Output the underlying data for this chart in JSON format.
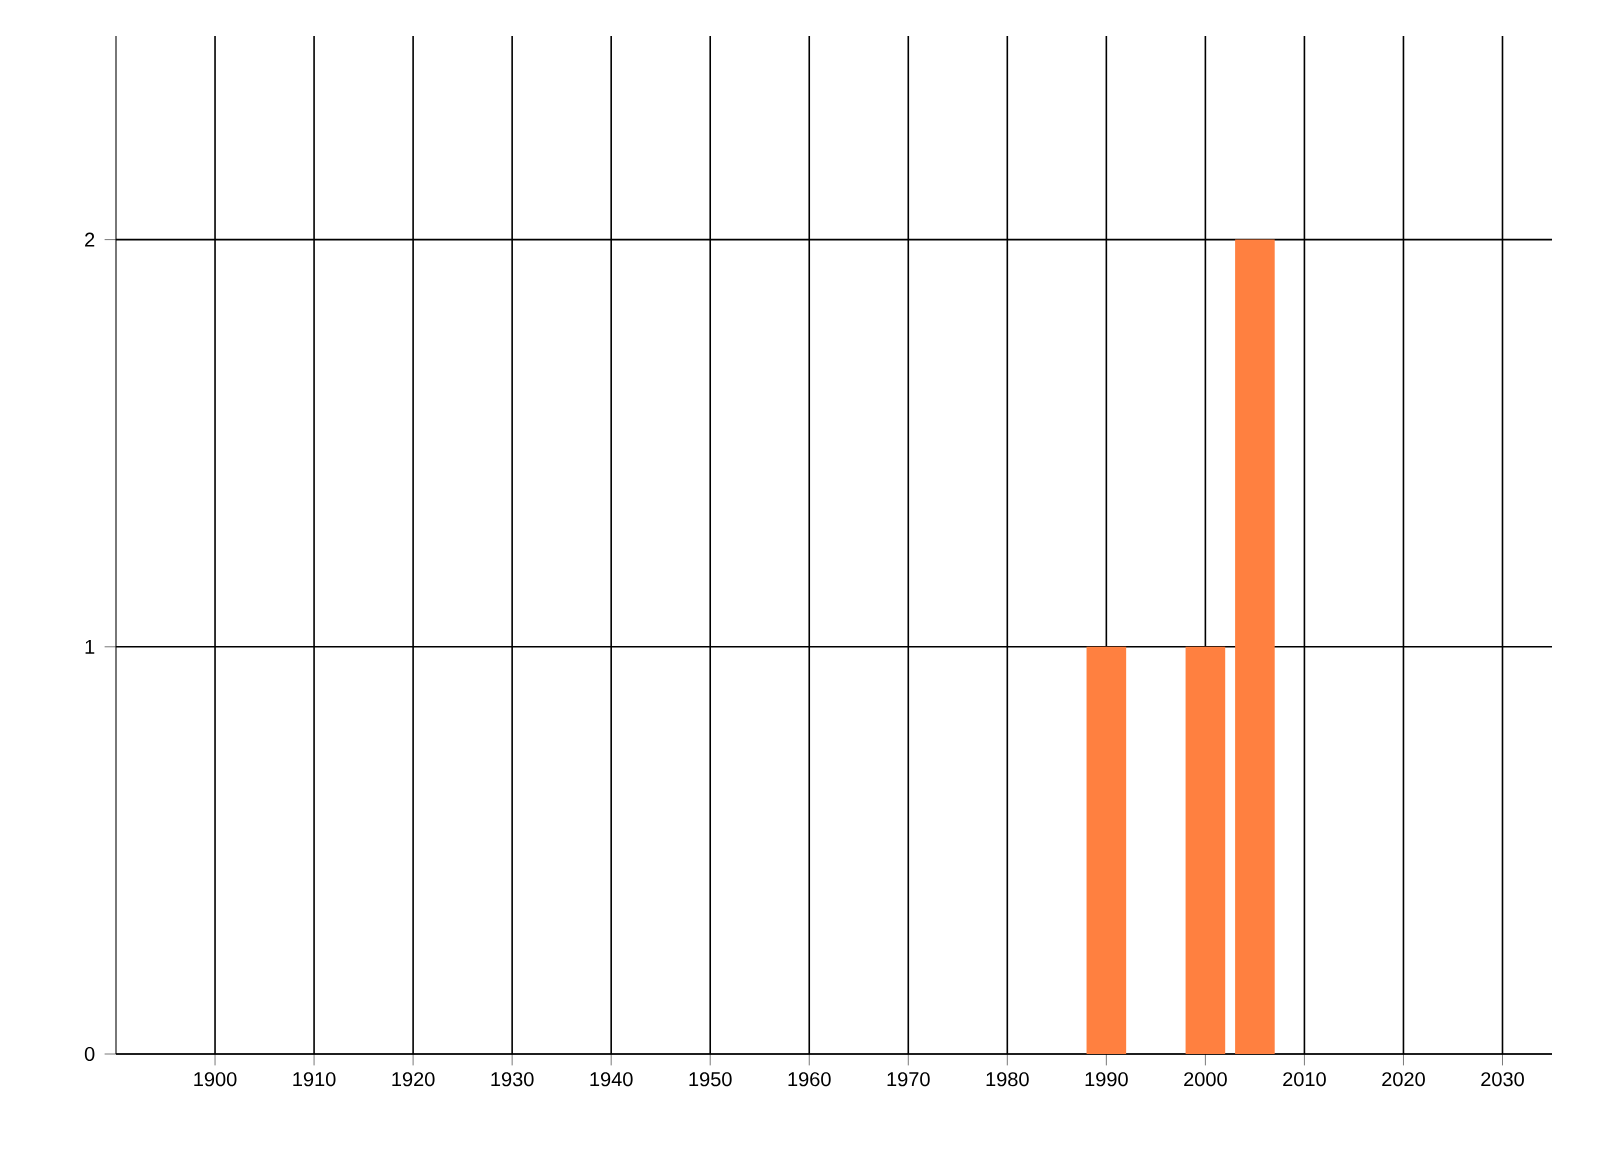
{
  "chart_data": {
    "type": "bar",
    "x": [
      1990,
      2000,
      2005
    ],
    "values": [
      1,
      1,
      2
    ],
    "color": "#ff8040",
    "xlim": [
      1890,
      2035
    ],
    "xticks": [
      1900,
      1910,
      1920,
      1930,
      1940,
      1950,
      1960,
      1970,
      1980,
      1990,
      2000,
      2010,
      2020,
      2030
    ],
    "ylim": [
      0,
      2.5
    ],
    "yticks": [
      0,
      1,
      2
    ],
    "grid": true
  }
}
